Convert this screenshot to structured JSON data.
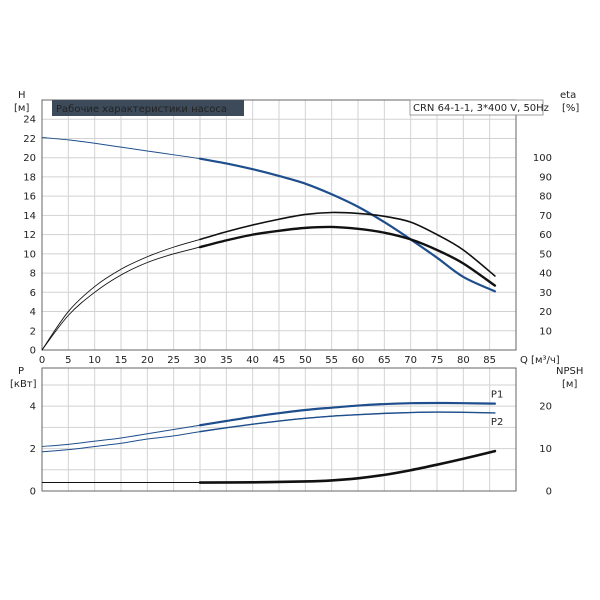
{
  "chart_data": [
    {
      "type": "line",
      "title": "Рабочие характеристики насоса",
      "subtitle": "CRN 64-1-1, 3*400 V, 50Hz",
      "xlabel": "Q [м³/ч]",
      "x_unit_label": "Q [м³/ч]",
      "x_ticks": [
        "0",
        "5",
        "10",
        "15",
        "20",
        "25",
        "30",
        "35",
        "40",
        "45",
        "50",
        "55",
        "60",
        "65",
        "70",
        "75",
        "80",
        "85"
      ],
      "xlim": [
        0,
        90
      ],
      "ylabel_left": "H",
      "ylabel_left_unit": "[м]",
      "ylim_left": [
        0,
        26
      ],
      "y_ticks_left": [
        "0",
        "2",
        "4",
        "6",
        "8",
        "10",
        "12",
        "14",
        "16",
        "18",
        "20",
        "22",
        "24"
      ],
      "ylabel_right": "eta",
      "ylabel_right_unit": "[%]",
      "ylim_right": [
        0,
        130
      ],
      "y_ticks_right": [
        "10",
        "20",
        "30",
        "40",
        "50",
        "60",
        "70",
        "80",
        "90",
        "100"
      ],
      "grid": true,
      "series": [
        {
          "axis": "left",
          "color": "#1f4e8c",
          "x": [
            0,
            5,
            10,
            15,
            20,
            25,
            30,
            35,
            40,
            45,
            50,
            55,
            60,
            65,
            70,
            75,
            80,
            86
          ],
          "values": [
            22.1,
            21.85,
            21.5,
            21.1,
            20.7,
            20.3,
            19.9,
            19.4,
            18.8,
            18.1,
            17.3,
            16.2,
            14.9,
            13.3,
            11.5,
            9.6,
            7.6,
            6.1
          ]
        },
        {
          "axis": "right",
          "color": "#111111",
          "x": [
            0,
            5,
            10,
            15,
            20,
            25,
            30,
            35,
            40,
            45,
            50,
            55,
            60,
            65,
            70,
            75,
            80,
            86
          ],
          "values": [
            0,
            20,
            33,
            42,
            48.5,
            53.5,
            57.5,
            61.5,
            65,
            68,
            70.5,
            71.5,
            71,
            69.5,
            66.5,
            60,
            52,
            38.5
          ]
        },
        {
          "axis": "right",
          "color": "#111111",
          "x": [
            0,
            5,
            10,
            15,
            20,
            25,
            30,
            35,
            40,
            45,
            50,
            55,
            60,
            65,
            70,
            75,
            80,
            86
          ],
          "values": [
            0,
            18,
            30,
            39,
            45.5,
            50,
            53.5,
            57,
            60,
            62,
            63.5,
            64,
            63,
            61,
            57.5,
            52,
            45,
            33.5
          ]
        }
      ]
    },
    {
      "type": "line",
      "xlim": [
        0,
        90
      ],
      "ylabel_left": "P",
      "ylabel_left_unit": "[кВт]",
      "ylim_left": [
        0,
        5.8
      ],
      "y_ticks_left": [
        "0",
        "2",
        "4"
      ],
      "ylabel_right": "NPSH",
      "ylabel_right_unit": "[м]",
      "ylim_right": [
        0,
        29
      ],
      "y_ticks_right": [
        "0",
        "10",
        "20"
      ],
      "grid": true,
      "series": [
        {
          "name": "P1",
          "axis": "left",
          "color": "#1f4e8c",
          "x": [
            0,
            5,
            10,
            15,
            20,
            25,
            30,
            35,
            40,
            45,
            50,
            55,
            60,
            65,
            70,
            75,
            80,
            86
          ],
          "values": [
            2.1,
            2.2,
            2.35,
            2.5,
            2.7,
            2.9,
            3.1,
            3.3,
            3.5,
            3.67,
            3.82,
            3.93,
            4.03,
            4.1,
            4.14,
            4.15,
            4.14,
            4.12
          ]
        },
        {
          "name": "P2",
          "axis": "left",
          "color": "#1f4e8c",
          "x": [
            0,
            5,
            10,
            15,
            20,
            25,
            30,
            35,
            40,
            45,
            50,
            55,
            60,
            65,
            70,
            75,
            80,
            86
          ],
          "values": [
            1.85,
            1.95,
            2.1,
            2.25,
            2.45,
            2.6,
            2.8,
            2.98,
            3.15,
            3.3,
            3.43,
            3.53,
            3.6,
            3.66,
            3.7,
            3.72,
            3.71,
            3.68
          ]
        },
        {
          "axis": "right",
          "color": "#111111",
          "x": [
            0,
            10,
            20,
            30,
            40,
            50,
            55,
            60,
            65,
            70,
            75,
            80,
            86
          ],
          "values": [
            2.0,
            2.0,
            2.0,
            2.0,
            2.05,
            2.25,
            2.5,
            3.0,
            3.8,
            4.9,
            6.2,
            7.6,
            9.4
          ]
        }
      ]
    }
  ]
}
